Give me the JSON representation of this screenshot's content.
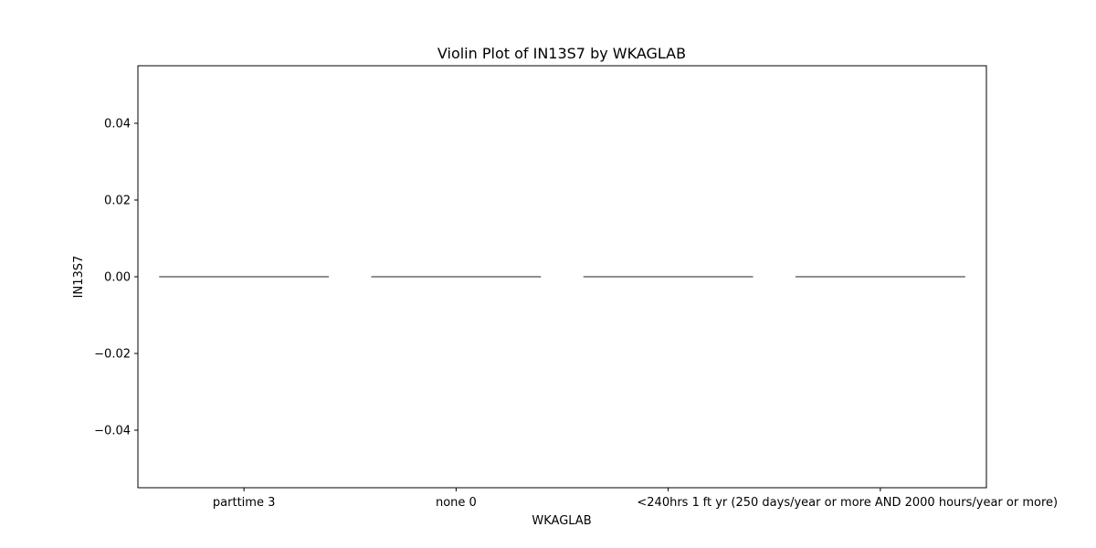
{
  "chart_data": {
    "type": "violin",
    "title": "Violin Plot of IN13S7 by WKAGLAB",
    "xlabel": "WKAGLAB",
    "ylabel": "IN13S7",
    "categories": [
      "parttime 3",
      "none 0",
      "<240hrs 1",
      "ft yr (250 days/year or more AND 2000 hours/year or more)"
    ],
    "values": [
      0,
      0,
      0,
      0
    ],
    "ylim": [
      -0.055,
      0.055
    ],
    "yticks": [
      -0.04,
      -0.02,
      0.0,
      0.02,
      0.04
    ],
    "ytick_labels": [
      "−0.04",
      "−0.02",
      "0.00",
      "0.02",
      "0.04"
    ],
    "grid": false,
    "violin_color": "#4c4c4c"
  }
}
